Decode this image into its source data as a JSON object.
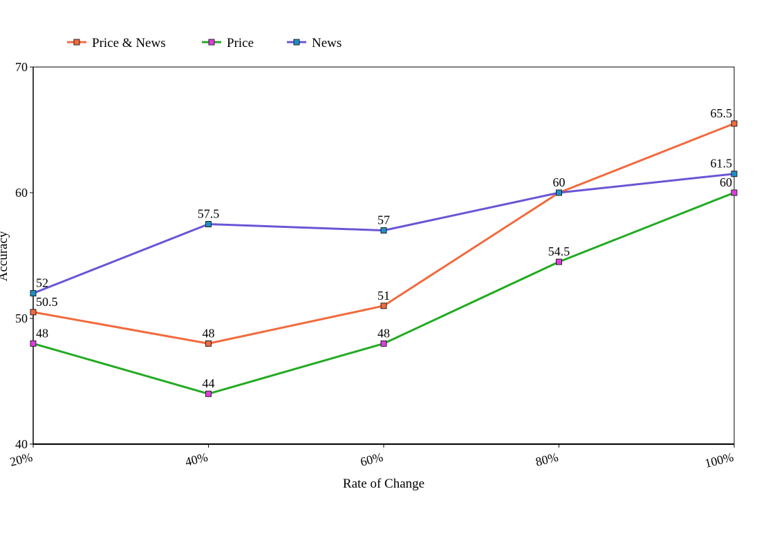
{
  "chart_data": {
    "type": "line",
    "title": "",
    "xlabel": "Rate of Change",
    "ylabel": "Accuracy",
    "categories": [
      "20%",
      "40%",
      "60%",
      "80%",
      "100%"
    ],
    "ylim": [
      40,
      70
    ],
    "yticks": [
      "40",
      "50",
      "60",
      "70"
    ],
    "legend_position": "top-left",
    "grid": false,
    "series": [
      {
        "name": "Price & News",
        "values": [
          50.5,
          48,
          51,
          60,
          65.5
        ],
        "labels": [
          "50.5",
          "48",
          "51",
          "60",
          "65.5"
        ],
        "color": "#f26a3d",
        "marker_color": "#f26a3d"
      },
      {
        "name": "Price",
        "values": [
          48,
          44,
          48,
          54.5,
          60
        ],
        "labels": [
          "48",
          "44",
          "48",
          "54.5",
          "60"
        ],
        "color": "#22aa22",
        "marker_color": "#e03ce0"
      },
      {
        "name": "News",
        "values": [
          52,
          57.5,
          57,
          60,
          61.5
        ],
        "labels": [
          "52",
          "57.5",
          "57",
          "",
          "61.5"
        ],
        "color": "#6a55d6",
        "marker_color": "#1e8fc8"
      }
    ]
  }
}
